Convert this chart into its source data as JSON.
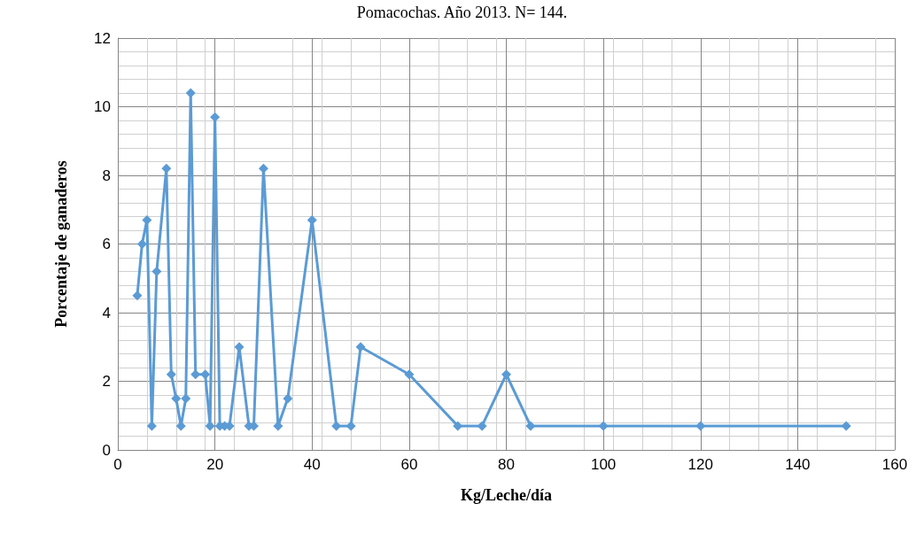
{
  "chart_data": {
    "type": "line",
    "title": "Pomacochas. Año 2013. N= 144.",
    "xlabel": "Kg/Leche/día",
    "ylabel": "Porcentaje de ganaderos",
    "x": [
      4,
      5,
      6,
      7,
      8,
      10,
      11,
      12,
      13,
      14,
      15,
      16,
      18,
      19,
      20,
      21,
      22,
      23,
      25,
      27,
      28,
      30,
      33,
      35,
      40,
      45,
      48,
      50,
      60,
      70,
      75,
      80,
      85,
      100,
      120,
      150
    ],
    "series": [
      {
        "color": "#5b9bd5",
        "values": [
          4.5,
          6.0,
          6.7,
          0.7,
          5.2,
          8.2,
          2.2,
          1.5,
          0.7,
          1.5,
          10.4,
          2.2,
          2.2,
          0.7,
          9.7,
          0.7,
          0.7,
          0.7,
          3.0,
          0.7,
          0.7,
          8.2,
          0.7,
          1.5,
          6.7,
          0.7,
          0.7,
          3.0,
          2.2,
          0.7,
          0.7,
          2.2,
          0.7,
          0.7,
          0.7,
          0.7
        ]
      }
    ],
    "xlim": [
      0,
      160
    ],
    "xticks": [
      0,
      20,
      40,
      60,
      80,
      100,
      120,
      140,
      160
    ],
    "ylim": [
      0,
      12
    ],
    "yticks": [
      0,
      2,
      4,
      6,
      8,
      10,
      12
    ],
    "grid": true,
    "marker": "diamond",
    "line_style": "solid"
  }
}
